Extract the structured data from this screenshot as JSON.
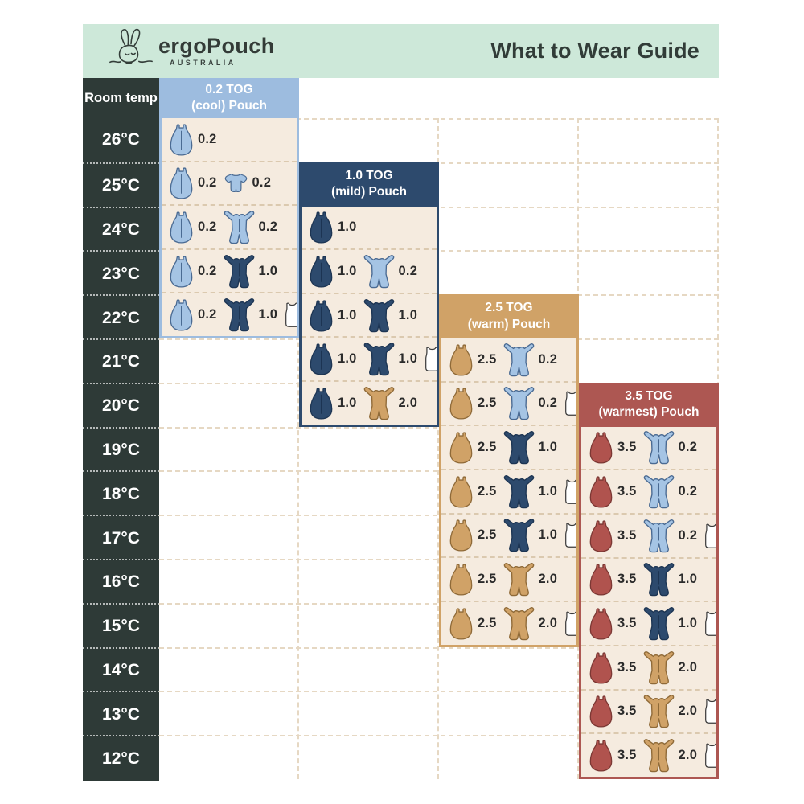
{
  "page": {
    "title": "What to Wear Guide"
  },
  "brand": {
    "name": "ergoPouch",
    "sub": "AUSTRALIA",
    "logo_icon": "bunny-sketch-icon"
  },
  "palette": {
    "mint": "#cde8d9",
    "charcoal": "#2e3a37",
    "cream": "#f5ebdf",
    "grid": "#e6d8c3",
    "rowdash": "#dbc9af",
    "themes": {
      "lightblue": "#9dbcdf",
      "navy": "#2d4a6d",
      "tan": "#d0a267",
      "red": "#ad5752"
    },
    "items": {
      "lightblue": {
        "fill": "#a5c4e4",
        "stroke": "#4a6a92"
      },
      "navy": {
        "fill": "#2d4a6d",
        "stroke": "#1d3553"
      },
      "tan": {
        "fill": "#d0a267",
        "stroke": "#8f6a38"
      },
      "red": {
        "fill": "#b0534e",
        "stroke": "#7c3834"
      },
      "white": {
        "fill": "#ffffff",
        "stroke": "#3b3b3b"
      }
    }
  },
  "table": {
    "corner_label": "Room temp",
    "temps": [
      "26°C",
      "25°C",
      "24°C",
      "23°C",
      "22°C",
      "21°C",
      "20°C",
      "19°C",
      "18°C",
      "17°C",
      "16°C",
      "15°C",
      "14°C",
      "13°C",
      "12°C"
    ],
    "columns": [
      {
        "title_line1": "0.2 TOG",
        "title_line2": "(cool) Pouch",
        "theme": "lightblue",
        "header_row": -1,
        "rows": [
          {
            "temp": "26°C",
            "items": [
              {
                "icon": "sleep-bag",
                "color": "lightblue",
                "tog": "0.2"
              }
            ]
          },
          {
            "temp": "25°C",
            "items": [
              {
                "icon": "sleep-bag",
                "color": "lightblue",
                "tog": "0.2"
              },
              {
                "icon": "romper",
                "color": "lightblue",
                "tog": "0.2"
              }
            ]
          },
          {
            "temp": "24°C",
            "items": [
              {
                "icon": "sleep-bag",
                "color": "lightblue",
                "tog": "0.2"
              },
              {
                "icon": "sleepsuit",
                "color": "lightblue",
                "tog": "0.2"
              }
            ]
          },
          {
            "temp": "23°C",
            "items": [
              {
                "icon": "sleep-bag",
                "color": "lightblue",
                "tog": "0.2"
              },
              {
                "icon": "sleepsuit",
                "color": "navy",
                "tog": "1.0"
              }
            ]
          },
          {
            "temp": "22°C",
            "items": [
              {
                "icon": "sleep-bag",
                "color": "lightblue",
                "tog": "0.2"
              },
              {
                "icon": "sleepsuit",
                "color": "navy",
                "tog": "1.0"
              },
              {
                "icon": "singlet",
                "color": "white"
              }
            ]
          }
        ]
      },
      {
        "title_line1": "1.0 TOG",
        "title_line2": "(mild) Pouch",
        "theme": "navy",
        "header_row": 1,
        "rows": [
          {
            "temp": "24°C",
            "items": [
              {
                "icon": "sleep-bag",
                "color": "navy",
                "tog": "1.0"
              }
            ]
          },
          {
            "temp": "23°C",
            "items": [
              {
                "icon": "sleep-bag",
                "color": "navy",
                "tog": "1.0"
              },
              {
                "icon": "sleepsuit",
                "color": "lightblue",
                "tog": "0.2"
              }
            ]
          },
          {
            "temp": "22°C",
            "items": [
              {
                "icon": "sleep-bag",
                "color": "navy",
                "tog": "1.0"
              },
              {
                "icon": "sleepsuit",
                "color": "navy",
                "tog": "1.0"
              }
            ]
          },
          {
            "temp": "21°C",
            "items": [
              {
                "icon": "sleep-bag",
                "color": "navy",
                "tog": "1.0"
              },
              {
                "icon": "sleepsuit",
                "color": "navy",
                "tog": "1.0"
              },
              {
                "icon": "singlet",
                "color": "white"
              }
            ]
          },
          {
            "temp": "20°C",
            "items": [
              {
                "icon": "sleep-bag",
                "color": "navy",
                "tog": "1.0"
              },
              {
                "icon": "sleepsuit",
                "color": "tan",
                "tog": "2.0"
              }
            ]
          }
        ]
      },
      {
        "title_line1": "2.5 TOG",
        "title_line2": "(warm) Pouch",
        "theme": "tan",
        "header_row": 4,
        "rows": [
          {
            "temp": "21°C",
            "items": [
              {
                "icon": "sleep-bag",
                "color": "tan",
                "tog": "2.5"
              },
              {
                "icon": "sleepsuit",
                "color": "lightblue",
                "tog": "0.2"
              }
            ]
          },
          {
            "temp": "20°C",
            "items": [
              {
                "icon": "sleep-bag",
                "color": "tan",
                "tog": "2.5"
              },
              {
                "icon": "sleepsuit",
                "color": "lightblue",
                "tog": "0.2"
              },
              {
                "icon": "singlet",
                "color": "white"
              }
            ]
          },
          {
            "temp": "19°C",
            "items": [
              {
                "icon": "sleep-bag",
                "color": "tan",
                "tog": "2.5"
              },
              {
                "icon": "sleepsuit",
                "color": "navy",
                "tog": "1.0"
              }
            ]
          },
          {
            "temp": "18°C",
            "items": [
              {
                "icon": "sleep-bag",
                "color": "tan",
                "tog": "2.5"
              },
              {
                "icon": "sleepsuit",
                "color": "navy",
                "tog": "1.0"
              },
              {
                "icon": "singlet",
                "color": "white"
              }
            ]
          },
          {
            "temp": "17°C",
            "items": [
              {
                "icon": "sleep-bag",
                "color": "tan",
                "tog": "2.5"
              },
              {
                "icon": "sleepsuit",
                "color": "navy",
                "tog": "1.0"
              },
              {
                "icon": "singlet",
                "color": "white"
              }
            ]
          },
          {
            "temp": "16°C",
            "items": [
              {
                "icon": "sleep-bag",
                "color": "tan",
                "tog": "2.5"
              },
              {
                "icon": "sleepsuit",
                "color": "tan",
                "tog": "2.0"
              }
            ]
          },
          {
            "temp": "15°C",
            "items": [
              {
                "icon": "sleep-bag",
                "color": "tan",
                "tog": "2.5"
              },
              {
                "icon": "sleepsuit",
                "color": "tan",
                "tog": "2.0"
              },
              {
                "icon": "singlet",
                "color": "white"
              }
            ]
          }
        ]
      },
      {
        "title_line1": "3.5 TOG",
        "title_line2": "(warmest) Pouch",
        "theme": "red",
        "header_row": 6,
        "rows": [
          {
            "temp": "19°C",
            "items": [
              {
                "icon": "sleep-bag",
                "color": "red",
                "tog": "3.5"
              },
              {
                "icon": "sleepsuit",
                "color": "lightblue",
                "tog": "0.2"
              }
            ]
          },
          {
            "temp": "18°C",
            "items": [
              {
                "icon": "sleep-bag",
                "color": "red",
                "tog": "3.5"
              },
              {
                "icon": "sleepsuit",
                "color": "lightblue",
                "tog": "0.2"
              }
            ]
          },
          {
            "temp": "17°C",
            "items": [
              {
                "icon": "sleep-bag",
                "color": "red",
                "tog": "3.5"
              },
              {
                "icon": "sleepsuit",
                "color": "lightblue",
                "tog": "0.2"
              },
              {
                "icon": "singlet",
                "color": "white"
              }
            ]
          },
          {
            "temp": "16°C",
            "items": [
              {
                "icon": "sleep-bag",
                "color": "red",
                "tog": "3.5"
              },
              {
                "icon": "sleepsuit",
                "color": "navy",
                "tog": "1.0"
              }
            ]
          },
          {
            "temp": "15°C",
            "items": [
              {
                "icon": "sleep-bag",
                "color": "red",
                "tog": "3.5"
              },
              {
                "icon": "sleepsuit",
                "color": "navy",
                "tog": "1.0"
              },
              {
                "icon": "singlet",
                "color": "white"
              }
            ]
          },
          {
            "temp": "14°C",
            "items": [
              {
                "icon": "sleep-bag",
                "color": "red",
                "tog": "3.5"
              },
              {
                "icon": "sleepsuit",
                "color": "tan",
                "tog": "2.0"
              }
            ]
          },
          {
            "temp": "13°C",
            "items": [
              {
                "icon": "sleep-bag",
                "color": "red",
                "tog": "3.5"
              },
              {
                "icon": "sleepsuit",
                "color": "tan",
                "tog": "2.0"
              },
              {
                "icon": "singlet",
                "color": "white"
              }
            ]
          },
          {
            "temp": "12°C",
            "items": [
              {
                "icon": "sleep-bag",
                "color": "red",
                "tog": "3.5"
              },
              {
                "icon": "sleepsuit",
                "color": "tan",
                "tog": "2.0"
              },
              {
                "icon": "singlet",
                "color": "white"
              }
            ]
          }
        ]
      }
    ]
  }
}
